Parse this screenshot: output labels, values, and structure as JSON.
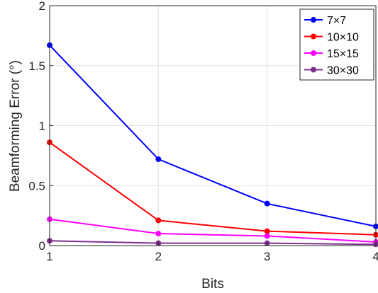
{
  "chart_data": {
    "type": "line",
    "title": "",
    "xlabel": "Bits",
    "ylabel": "Beamforming Error (°)",
    "x": [
      1,
      2,
      3,
      4
    ],
    "xlim": [
      1,
      4
    ],
    "ylim": [
      0,
      2
    ],
    "xticks": [
      "1",
      "2",
      "3",
      "4"
    ],
    "yticks": [
      "0",
      "0.5",
      "1",
      "1.5",
      "2"
    ],
    "grid": true,
    "legend_position": "top-right",
    "series": [
      {
        "name": "7×7",
        "color": "#0000ff",
        "values": [
          1.67,
          0.72,
          0.35,
          0.16
        ]
      },
      {
        "name": "10×10",
        "color": "#ff0000",
        "values": [
          0.86,
          0.21,
          0.12,
          0.09
        ]
      },
      {
        "name": "15×15",
        "color": "#ff00ff",
        "values": [
          0.22,
          0.1,
          0.08,
          0.03
        ]
      },
      {
        "name": "30×30",
        "color": "#7e2f8e",
        "values": [
          0.04,
          0.02,
          0.02,
          0.01
        ]
      }
    ]
  }
}
